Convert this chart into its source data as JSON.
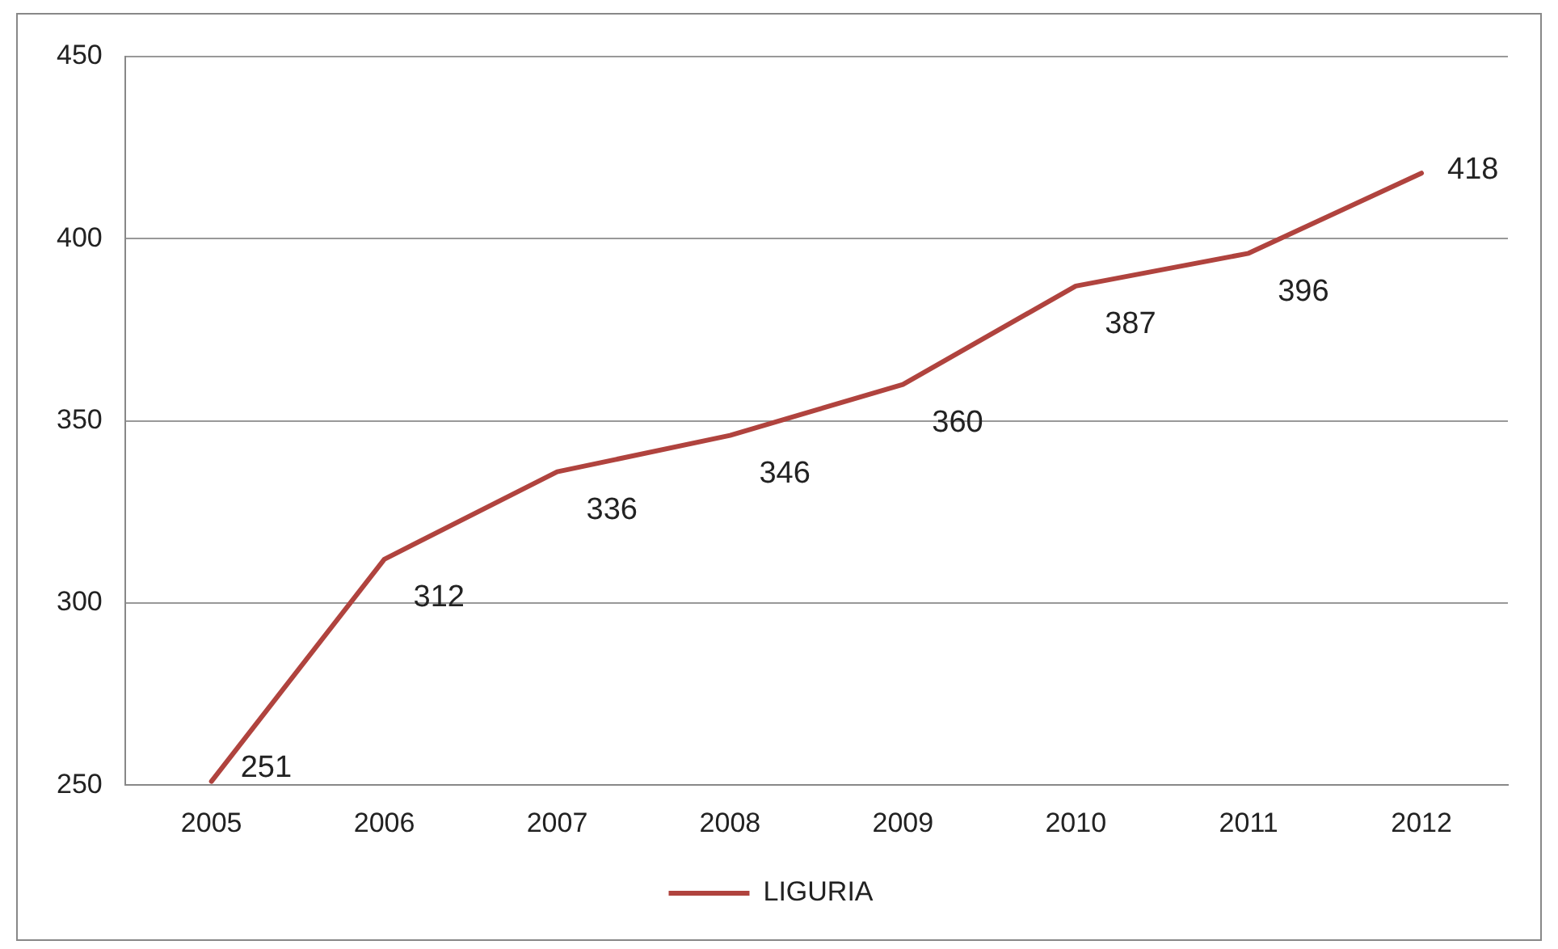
{
  "chart_data": {
    "type": "line",
    "categories": [
      "2005",
      "2006",
      "2007",
      "2008",
      "2009",
      "2010",
      "2011",
      "2012"
    ],
    "series": [
      {
        "name": "LIGURIA",
        "color": "#b0433e",
        "values": [
          251,
          312,
          336,
          346,
          360,
          387,
          396,
          418
        ]
      }
    ],
    "ylim": [
      250,
      450
    ],
    "yticks": [
      250,
      300,
      350,
      400,
      450
    ],
    "grid": "y",
    "legend": "bottom",
    "data_labels": true,
    "marker": "none",
    "line_style": "solid"
  }
}
